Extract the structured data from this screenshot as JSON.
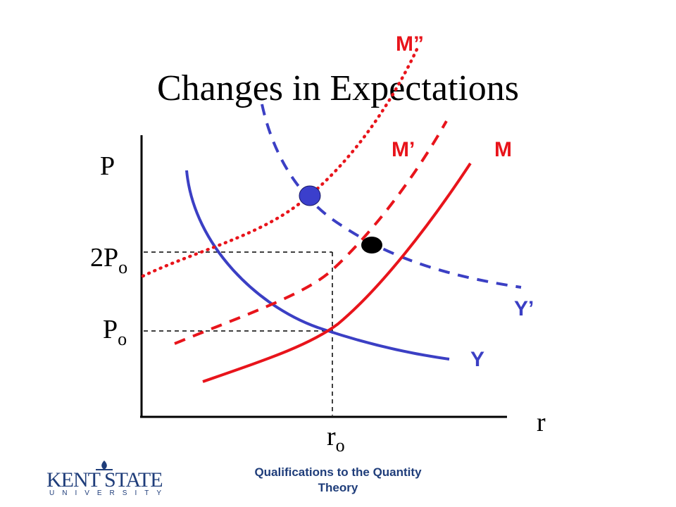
{
  "slide": {
    "title": "Changes in Expectations",
    "footer_line1": "Qualifications to the Quantity",
    "footer_line2": "Theory",
    "logo_main": "KENT STATE",
    "logo_sub": "UNIVERSITY"
  },
  "diagram": {
    "y_axis_label": "P",
    "x_axis_label": "r",
    "tick_2po_main": "2P",
    "tick_2po_sub": "o",
    "tick_po_main": "P",
    "tick_po_sub": "o",
    "tick_ro_main": "r",
    "tick_ro_sub": "o",
    "curves": {
      "m": "M",
      "m_prime": "M’",
      "m_double_prime": "M”",
      "y": "Y",
      "y_prime": "Y’"
    },
    "colors": {
      "red": "#e8141b",
      "blue": "#3b3fc4",
      "point_blue": "#3b3fcc",
      "point_black": "#000000",
      "footer": "#1f3d7a"
    }
  }
}
